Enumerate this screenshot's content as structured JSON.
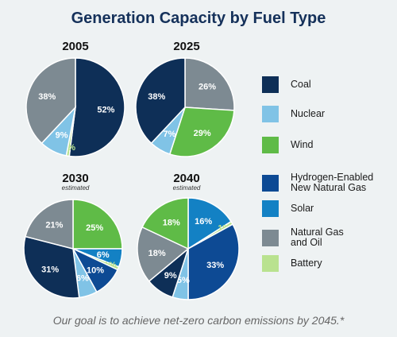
{
  "title": "Generation Capacity by Fuel Type",
  "footer": "Our goal is to achieve net-zero carbon emissions by 2045.*",
  "colors": {
    "Coal": "#0e2f57",
    "Nuclear": "#80c3e6",
    "Wind": "#5fbb47",
    "Hydrogen-Enabled New Natural Gas": "#0d4a94",
    "Solar": "#1381c4",
    "Natural Gas and Oil": "#7d8a92",
    "Battery": "#b9e28f"
  },
  "legend": [
    {
      "key": "Coal",
      "label": "Coal"
    },
    {
      "key": "Nuclear",
      "label": "Nuclear"
    },
    {
      "key": "Wind",
      "label": "Wind"
    },
    {
      "key": "Hydrogen-Enabled New Natural Gas",
      "label": "Hydrogen-Enabled\nNew Natural Gas"
    },
    {
      "key": "Solar",
      "label": "Solar"
    },
    {
      "key": "Natural Gas and Oil",
      "label": "Natural Gas\nand Oil"
    },
    {
      "key": "Battery",
      "label": "Battery"
    }
  ],
  "chart_data": [
    {
      "type": "pie",
      "title": "2005",
      "subtitle": "",
      "slices": [
        {
          "name": "Coal",
          "value": 52,
          "label": "52%"
        },
        {
          "name": "Battery",
          "value": 1,
          "label": "1%"
        },
        {
          "name": "Nuclear",
          "value": 9,
          "label": "9%"
        },
        {
          "name": "Natural Gas and Oil",
          "value": 38,
          "label": "38%"
        }
      ]
    },
    {
      "type": "pie",
      "title": "2025",
      "subtitle": "",
      "slices": [
        {
          "name": "Natural Gas and Oil",
          "value": 26,
          "label": "26%"
        },
        {
          "name": "Wind",
          "value": 29,
          "label": "29%"
        },
        {
          "name": "Nuclear",
          "value": 7,
          "label": "7%"
        },
        {
          "name": "Coal",
          "value": 38,
          "label": "38%"
        }
      ]
    },
    {
      "type": "pie",
      "title": "2030",
      "subtitle": "estimated",
      "slices": [
        {
          "name": "Wind",
          "value": 25,
          "label": "25%"
        },
        {
          "name": "Solar",
          "value": 6,
          "label": "6%"
        },
        {
          "name": "Battery",
          "value": 1,
          "label": "1%"
        },
        {
          "name": "Hydrogen-Enabled New Natural Gas",
          "value": 10,
          "label": "10%"
        },
        {
          "name": "Nuclear",
          "value": 6,
          "label": "6%"
        },
        {
          "name": "Coal",
          "value": 31,
          "label": "31%"
        },
        {
          "name": "Natural Gas and Oil",
          "value": 21,
          "label": "21%"
        }
      ]
    },
    {
      "type": "pie",
      "title": "2040",
      "subtitle": "estimated",
      "slices": [
        {
          "name": "Solar",
          "value": 16,
          "label": "16%"
        },
        {
          "name": "Battery",
          "value": 1,
          "label": "1%"
        },
        {
          "name": "Hydrogen-Enabled New Natural Gas",
          "value": 33,
          "label": "33%"
        },
        {
          "name": "Nuclear",
          "value": 5,
          "label": "5%"
        },
        {
          "name": "Coal",
          "value": 9,
          "label": "9%"
        },
        {
          "name": "Natural Gas and Oil",
          "value": 18,
          "label": "18%"
        },
        {
          "name": "Wind",
          "value": 18,
          "label": "18%"
        }
      ]
    }
  ]
}
